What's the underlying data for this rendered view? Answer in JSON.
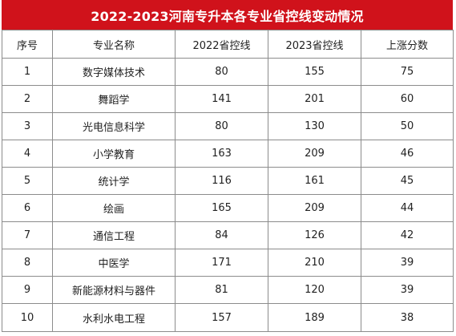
{
  "title": "2022-2023河南专升本各专业省控线变动情况",
  "colors": {
    "title_bg": "#d0121b",
    "title_text": "#ffffff",
    "border": "#8c8c8c"
  },
  "headers": [
    "序号",
    "专业名称",
    "2022省控线",
    "2023省控线",
    "上涨分数"
  ],
  "rows": [
    [
      "1",
      "数字媒体技术",
      "80",
      "155",
      "75"
    ],
    [
      "2",
      "舞蹈学",
      "141",
      "201",
      "60"
    ],
    [
      "3",
      "光电信息科学",
      "80",
      "130",
      "50"
    ],
    [
      "4",
      "小学教育",
      "163",
      "209",
      "46"
    ],
    [
      "5",
      "统计学",
      "116",
      "161",
      "45"
    ],
    [
      "6",
      "绘画",
      "165",
      "209",
      "44"
    ],
    [
      "7",
      "通信工程",
      "84",
      "126",
      "42"
    ],
    [
      "8",
      "中医学",
      "171",
      "210",
      "39"
    ],
    [
      "9",
      "新能源材料与器件",
      "81",
      "120",
      "39"
    ],
    [
      "10",
      "水利水电工程",
      "157",
      "189",
      "38"
    ]
  ]
}
